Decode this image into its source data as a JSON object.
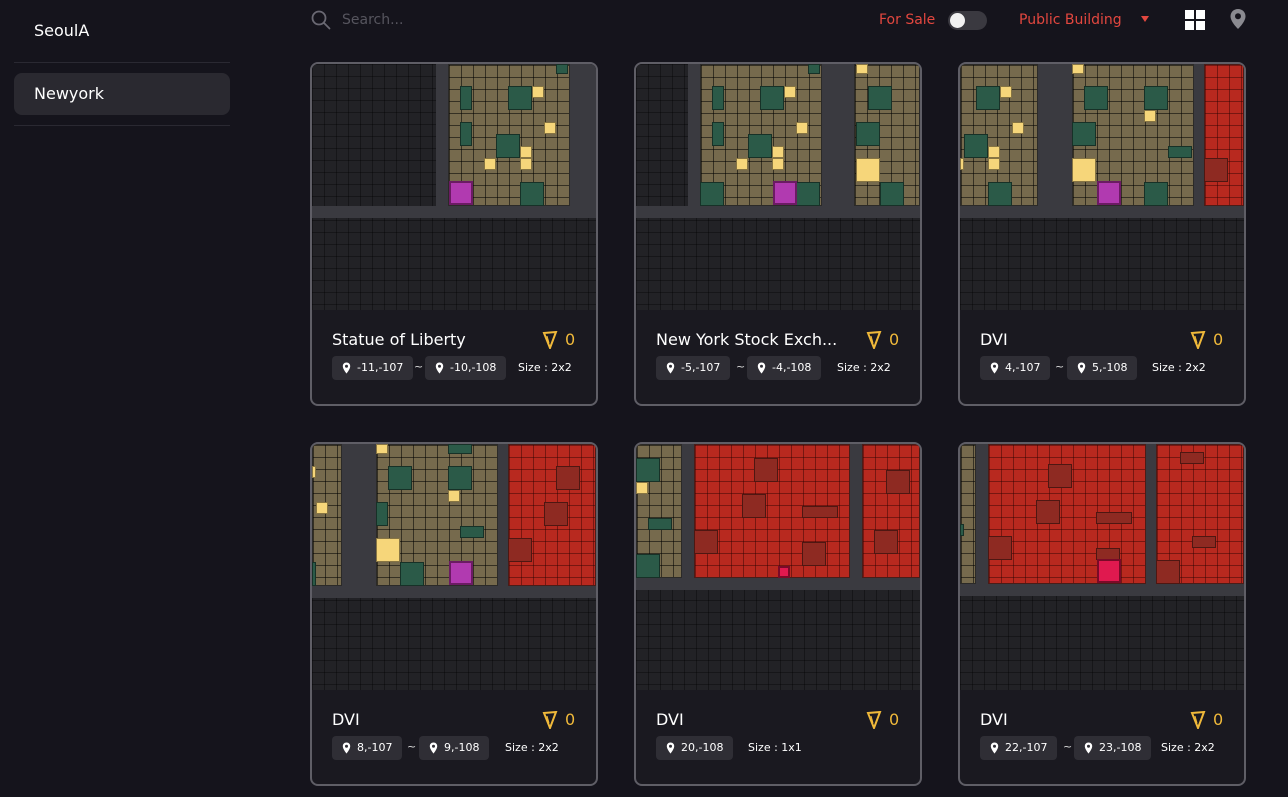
{
  "sidebar": {
    "cities": [
      {
        "label": "SeoulA",
        "active": false
      },
      {
        "label": "Newyork",
        "active": true
      }
    ]
  },
  "toolbar": {
    "search_placeholder": "Search...",
    "for_sale_label": "For Sale",
    "for_sale_enabled": false,
    "category_label": "Public Building",
    "accent_color": "#e2473f",
    "grid_icon": "grid-view-icon",
    "map_icon": "map-pin-icon"
  },
  "cards": [
    {
      "title": "Statue of Liberty",
      "price": "0",
      "from": "-11,-107",
      "to": "-10,-108",
      "size_label": "Size : 2x2"
    },
    {
      "title": "New York Stock Exch...",
      "price": "0",
      "from": "-5,-107",
      "to": "-4,-108",
      "size_label": "Size : 2x2"
    },
    {
      "title": "DVI",
      "price": "0",
      "from": "4,-107",
      "to": "5,-108",
      "size_label": "Size : 2x2"
    },
    {
      "title": "DVI",
      "price": "0",
      "from": "8,-107",
      "to": "9,-108",
      "size_label": "Size : 2x2"
    },
    {
      "title": "DVI",
      "price": "0",
      "from": "20,-108",
      "size_label": "Size : 1x1"
    },
    {
      "title": "DVI",
      "price": "0",
      "from": "22,-107",
      "to": "23,-108",
      "size_label": "Size : 2x2"
    }
  ]
}
